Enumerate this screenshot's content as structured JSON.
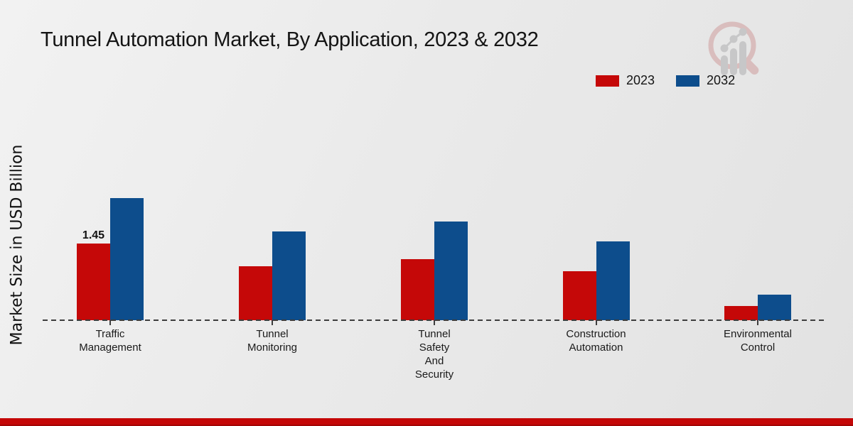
{
  "title": "Tunnel Automation Market, By Application, 2023 & 2032",
  "y_axis_label": "Market Size in USD Billion",
  "legend": {
    "items": [
      {
        "label": "2023",
        "color": "#c50808"
      },
      {
        "label": "2032",
        "color": "#0d4d8c"
      }
    ]
  },
  "annotation": {
    "text": "1.45",
    "series_index": 0,
    "category_index": 0
  },
  "brand_logo": "magnifier-bar-chart-watermark",
  "footer_accent_color": "#c40707",
  "chart_data": {
    "type": "bar",
    "title": "Tunnel Automation Market, By Application, 2023 & 2032",
    "ylabel": "Market Size in USD Billion",
    "xlabel": "",
    "categories": [
      "Traffic Management",
      "Tunnel Monitoring",
      "Tunnel Safety And Security",
      "Construction Automation",
      "Environmental Control"
    ],
    "category_label_lines": [
      [
        "Traffic",
        "Management"
      ],
      [
        "Tunnel",
        "Monitoring"
      ],
      [
        "Tunnel",
        "Safety",
        "And",
        "Security"
      ],
      [
        "Construction",
        "Automation"
      ],
      [
        "Environmental",
        "Control"
      ]
    ],
    "series": [
      {
        "name": "2023",
        "color": "#c50808",
        "values": [
          1.45,
          1.02,
          1.15,
          0.93,
          0.27
        ]
      },
      {
        "name": "2032",
        "color": "#0d4d8c",
        "values": [
          2.31,
          1.68,
          1.87,
          1.49,
          0.48
        ]
      }
    ],
    "data_labels": [
      {
        "series": "2023",
        "category": "Traffic Management",
        "value": 1.45
      }
    ],
    "ylim": [
      0,
      2.6
    ],
    "grid": false,
    "axis_style": "dashed baseline only, no y-axis ticks",
    "legend_position": "top-right"
  }
}
